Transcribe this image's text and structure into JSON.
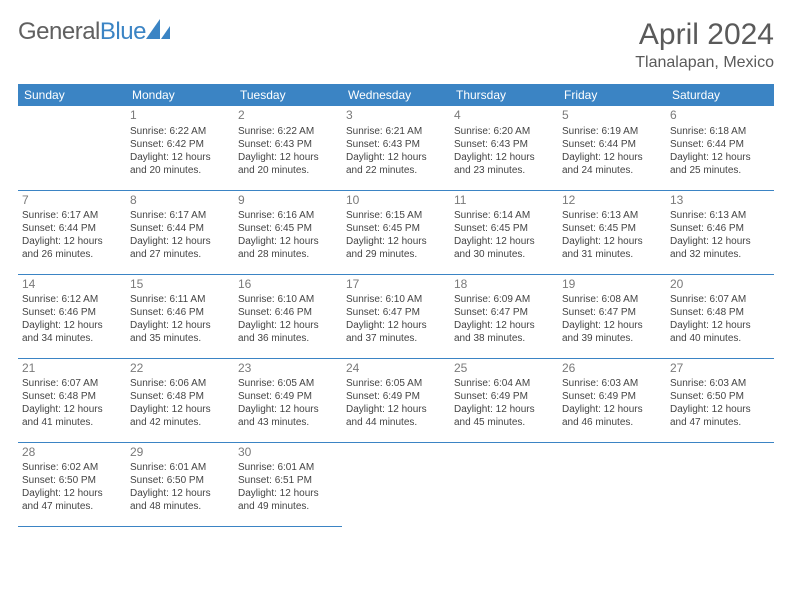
{
  "brand": {
    "general": "General",
    "blue": "Blue"
  },
  "title": "April 2024",
  "location": "Tlanalapan, Mexico",
  "colors": {
    "header_bg": "#3b84c4",
    "header_fg": "#ffffff",
    "border": "#3b84c4",
    "text": "#444444",
    "title": "#5a5a5a"
  },
  "weekdays": [
    "Sunday",
    "Monday",
    "Tuesday",
    "Wednesday",
    "Thursday",
    "Friday",
    "Saturday"
  ],
  "weeks": [
    [
      null,
      {
        "n": "1",
        "sr": "Sunrise: 6:22 AM",
        "ss": "Sunset: 6:42 PM",
        "dl": "Daylight: 12 hours and 20 minutes."
      },
      {
        "n": "2",
        "sr": "Sunrise: 6:22 AM",
        "ss": "Sunset: 6:43 PM",
        "dl": "Daylight: 12 hours and 20 minutes."
      },
      {
        "n": "3",
        "sr": "Sunrise: 6:21 AM",
        "ss": "Sunset: 6:43 PM",
        "dl": "Daylight: 12 hours and 22 minutes."
      },
      {
        "n": "4",
        "sr": "Sunrise: 6:20 AM",
        "ss": "Sunset: 6:43 PM",
        "dl": "Daylight: 12 hours and 23 minutes."
      },
      {
        "n": "5",
        "sr": "Sunrise: 6:19 AM",
        "ss": "Sunset: 6:44 PM",
        "dl": "Daylight: 12 hours and 24 minutes."
      },
      {
        "n": "6",
        "sr": "Sunrise: 6:18 AM",
        "ss": "Sunset: 6:44 PM",
        "dl": "Daylight: 12 hours and 25 minutes."
      }
    ],
    [
      {
        "n": "7",
        "sr": "Sunrise: 6:17 AM",
        "ss": "Sunset: 6:44 PM",
        "dl": "Daylight: 12 hours and 26 minutes."
      },
      {
        "n": "8",
        "sr": "Sunrise: 6:17 AM",
        "ss": "Sunset: 6:44 PM",
        "dl": "Daylight: 12 hours and 27 minutes."
      },
      {
        "n": "9",
        "sr": "Sunrise: 6:16 AM",
        "ss": "Sunset: 6:45 PM",
        "dl": "Daylight: 12 hours and 28 minutes."
      },
      {
        "n": "10",
        "sr": "Sunrise: 6:15 AM",
        "ss": "Sunset: 6:45 PM",
        "dl": "Daylight: 12 hours and 29 minutes."
      },
      {
        "n": "11",
        "sr": "Sunrise: 6:14 AM",
        "ss": "Sunset: 6:45 PM",
        "dl": "Daylight: 12 hours and 30 minutes."
      },
      {
        "n": "12",
        "sr": "Sunrise: 6:13 AM",
        "ss": "Sunset: 6:45 PM",
        "dl": "Daylight: 12 hours and 31 minutes."
      },
      {
        "n": "13",
        "sr": "Sunrise: 6:13 AM",
        "ss": "Sunset: 6:46 PM",
        "dl": "Daylight: 12 hours and 32 minutes."
      }
    ],
    [
      {
        "n": "14",
        "sr": "Sunrise: 6:12 AM",
        "ss": "Sunset: 6:46 PM",
        "dl": "Daylight: 12 hours and 34 minutes."
      },
      {
        "n": "15",
        "sr": "Sunrise: 6:11 AM",
        "ss": "Sunset: 6:46 PM",
        "dl": "Daylight: 12 hours and 35 minutes."
      },
      {
        "n": "16",
        "sr": "Sunrise: 6:10 AM",
        "ss": "Sunset: 6:46 PM",
        "dl": "Daylight: 12 hours and 36 minutes."
      },
      {
        "n": "17",
        "sr": "Sunrise: 6:10 AM",
        "ss": "Sunset: 6:47 PM",
        "dl": "Daylight: 12 hours and 37 minutes."
      },
      {
        "n": "18",
        "sr": "Sunrise: 6:09 AM",
        "ss": "Sunset: 6:47 PM",
        "dl": "Daylight: 12 hours and 38 minutes."
      },
      {
        "n": "19",
        "sr": "Sunrise: 6:08 AM",
        "ss": "Sunset: 6:47 PM",
        "dl": "Daylight: 12 hours and 39 minutes."
      },
      {
        "n": "20",
        "sr": "Sunrise: 6:07 AM",
        "ss": "Sunset: 6:48 PM",
        "dl": "Daylight: 12 hours and 40 minutes."
      }
    ],
    [
      {
        "n": "21",
        "sr": "Sunrise: 6:07 AM",
        "ss": "Sunset: 6:48 PM",
        "dl": "Daylight: 12 hours and 41 minutes."
      },
      {
        "n": "22",
        "sr": "Sunrise: 6:06 AM",
        "ss": "Sunset: 6:48 PM",
        "dl": "Daylight: 12 hours and 42 minutes."
      },
      {
        "n": "23",
        "sr": "Sunrise: 6:05 AM",
        "ss": "Sunset: 6:49 PM",
        "dl": "Daylight: 12 hours and 43 minutes."
      },
      {
        "n": "24",
        "sr": "Sunrise: 6:05 AM",
        "ss": "Sunset: 6:49 PM",
        "dl": "Daylight: 12 hours and 44 minutes."
      },
      {
        "n": "25",
        "sr": "Sunrise: 6:04 AM",
        "ss": "Sunset: 6:49 PM",
        "dl": "Daylight: 12 hours and 45 minutes."
      },
      {
        "n": "26",
        "sr": "Sunrise: 6:03 AM",
        "ss": "Sunset: 6:49 PM",
        "dl": "Daylight: 12 hours and 46 minutes."
      },
      {
        "n": "27",
        "sr": "Sunrise: 6:03 AM",
        "ss": "Sunset: 6:50 PM",
        "dl": "Daylight: 12 hours and 47 minutes."
      }
    ],
    [
      {
        "n": "28",
        "sr": "Sunrise: 6:02 AM",
        "ss": "Sunset: 6:50 PM",
        "dl": "Daylight: 12 hours and 47 minutes."
      },
      {
        "n": "29",
        "sr": "Sunrise: 6:01 AM",
        "ss": "Sunset: 6:50 PM",
        "dl": "Daylight: 12 hours and 48 minutes."
      },
      {
        "n": "30",
        "sr": "Sunrise: 6:01 AM",
        "ss": "Sunset: 6:51 PM",
        "dl": "Daylight: 12 hours and 49 minutes."
      },
      null,
      null,
      null,
      null
    ]
  ]
}
